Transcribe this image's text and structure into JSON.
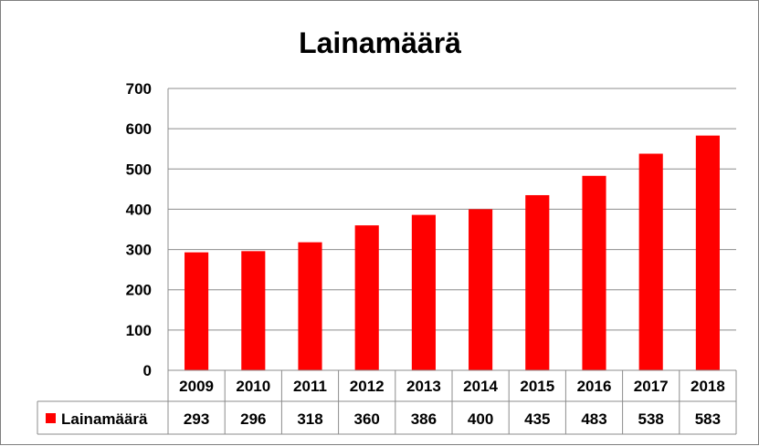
{
  "chart_data": {
    "type": "bar",
    "title": "Lainamäärä",
    "categories": [
      "2009",
      "2010",
      "2011",
      "2012",
      "2013",
      "2014",
      "2015",
      "2016",
      "2017",
      "2018"
    ],
    "series": [
      {
        "name": "Lainamäärä",
        "color": "#ff0000",
        "values": [
          293,
          296,
          318,
          360,
          386,
          400,
          435,
          483,
          538,
          583
        ]
      }
    ],
    "ylim": [
      0,
      700
    ],
    "yticks": [
      "0",
      "100",
      "200",
      "300",
      "400",
      "500",
      "600",
      "700"
    ],
    "grid": true,
    "legend": "data-table-left"
  }
}
